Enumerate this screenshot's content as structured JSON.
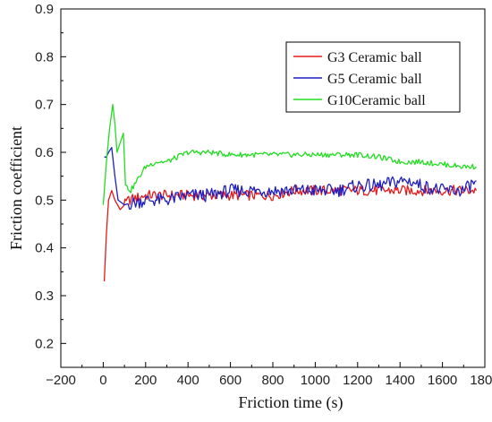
{
  "chart_data": {
    "type": "line",
    "title": "",
    "xlabel": "Friction time (s)",
    "ylabel": "Friction coefficient",
    "xlim": [
      -200,
      1800
    ],
    "ylim": [
      0.15,
      0.9
    ],
    "xticks": [
      -200,
      0,
      200,
      400,
      600,
      800,
      1000,
      1200,
      1400,
      1600,
      1800
    ],
    "yticks": [
      0.2,
      0.3,
      0.4,
      0.5,
      0.6,
      0.7,
      0.8,
      0.9
    ],
    "xtick_labels": [
      "−200",
      "0",
      "200",
      "400",
      "600",
      "800",
      "1000",
      "1200",
      "1400",
      "1600",
      "1800"
    ],
    "ytick_labels": [
      "0.2",
      "0.3",
      "0.4",
      "0.5",
      "0.6",
      "0.7",
      "0.8",
      "0.9"
    ],
    "grid": false,
    "legend_position": "top-right",
    "series": [
      {
        "name": "G3 Ceramic ball",
        "color": "#e31a1c",
        "points": [
          [
            5,
            0.33
          ],
          [
            15,
            0.43
          ],
          [
            25,
            0.5
          ],
          [
            40,
            0.52
          ],
          [
            55,
            0.5
          ],
          [
            80,
            0.48
          ],
          [
            120,
            0.5
          ],
          [
            200,
            0.51
          ],
          [
            300,
            0.51
          ],
          [
            400,
            0.51
          ],
          [
            500,
            0.51
          ],
          [
            600,
            0.51
          ],
          [
            700,
            0.51
          ],
          [
            800,
            0.51
          ],
          [
            900,
            0.52
          ],
          [
            1000,
            0.52
          ],
          [
            1100,
            0.52
          ],
          [
            1200,
            0.52
          ],
          [
            1300,
            0.52
          ],
          [
            1400,
            0.52
          ],
          [
            1500,
            0.52
          ],
          [
            1600,
            0.52
          ],
          [
            1700,
            0.52
          ],
          [
            1760,
            0.52
          ]
        ]
      },
      {
        "name": "G5 Ceramic ball",
        "color": "#1f1fbf",
        "points": [
          [
            5,
            0.59
          ],
          [
            15,
            0.59
          ],
          [
            25,
            0.6
          ],
          [
            40,
            0.61
          ],
          [
            55,
            0.55
          ],
          [
            70,
            0.5
          ],
          [
            100,
            0.49
          ],
          [
            200,
            0.5
          ],
          [
            300,
            0.5
          ],
          [
            400,
            0.51
          ],
          [
            500,
            0.51
          ],
          [
            600,
            0.52
          ],
          [
            700,
            0.52
          ],
          [
            800,
            0.52
          ],
          [
            900,
            0.52
          ],
          [
            1000,
            0.52
          ],
          [
            1100,
            0.52
          ],
          [
            1200,
            0.53
          ],
          [
            1300,
            0.53
          ],
          [
            1400,
            0.54
          ],
          [
            1450,
            0.54
          ],
          [
            1500,
            0.53
          ],
          [
            1600,
            0.52
          ],
          [
            1700,
            0.52
          ],
          [
            1760,
            0.54
          ]
        ]
      },
      {
        "name": "G10Ceramic ball",
        "color": "#22dd22",
        "points": [
          [
            0,
            0.49
          ],
          [
            15,
            0.58
          ],
          [
            30,
            0.65
          ],
          [
            45,
            0.7
          ],
          [
            55,
            0.66
          ],
          [
            65,
            0.6
          ],
          [
            80,
            0.62
          ],
          [
            95,
            0.64
          ],
          [
            105,
            0.53
          ],
          [
            130,
            0.52
          ],
          [
            200,
            0.57
          ],
          [
            250,
            0.58
          ],
          [
            300,
            0.58
          ],
          [
            400,
            0.6
          ],
          [
            500,
            0.6
          ],
          [
            600,
            0.595
          ],
          [
            700,
            0.595
          ],
          [
            800,
            0.595
          ],
          [
            900,
            0.595
          ],
          [
            1000,
            0.595
          ],
          [
            1100,
            0.595
          ],
          [
            1200,
            0.595
          ],
          [
            1300,
            0.59
          ],
          [
            1400,
            0.58
          ],
          [
            1500,
            0.58
          ],
          [
            1600,
            0.575
          ],
          [
            1700,
            0.57
          ],
          [
            1760,
            0.57
          ]
        ]
      }
    ]
  }
}
